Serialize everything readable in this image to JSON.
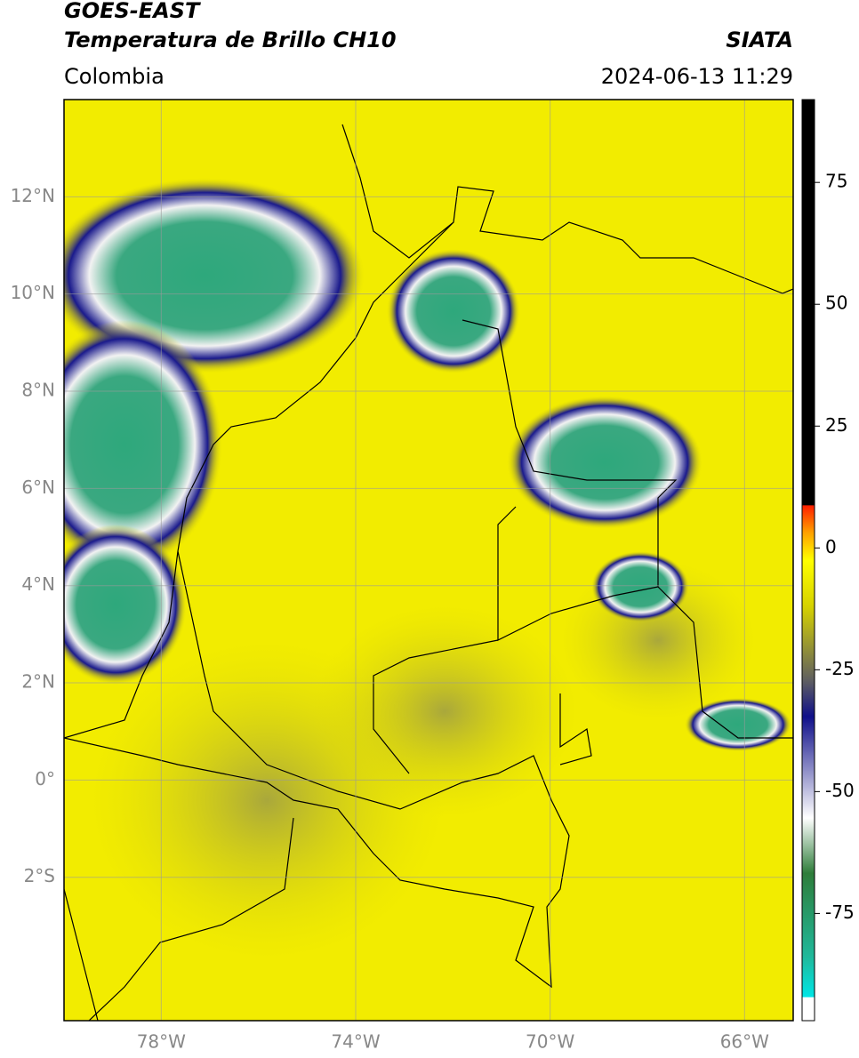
{
  "header": {
    "satellite": "GOES-EAST",
    "product": "Temperatura de Brillo CH10",
    "region": "Colombia",
    "source": "SIATA",
    "datetime": "2024-06-13 11:29"
  },
  "map": {
    "lonlim": [
      -80,
      -65
    ],
    "latlim": [
      -4.95,
      14
    ],
    "lon_ticks": [
      {
        "value": -78,
        "label": "78°W"
      },
      {
        "value": -74,
        "label": "74°W"
      },
      {
        "value": -70,
        "label": "70°W"
      },
      {
        "value": -66,
        "label": "66°W"
      }
    ],
    "lat_ticks": [
      {
        "value": 12,
        "label": "12°N"
      },
      {
        "value": 10,
        "label": "10°N"
      },
      {
        "value": 8,
        "label": "8°N"
      },
      {
        "value": 6,
        "label": "6°N"
      },
      {
        "value": 4,
        "label": "4°N"
      },
      {
        "value": 2,
        "label": "2°N"
      },
      {
        "value": 0,
        "label": "0°"
      },
      {
        "value": -2,
        "label": "2°S"
      }
    ]
  },
  "colorbar": {
    "lim": [
      -97,
      92
    ],
    "ticks": [
      75,
      50,
      25,
      0,
      -25,
      -50,
      -75
    ]
  }
}
